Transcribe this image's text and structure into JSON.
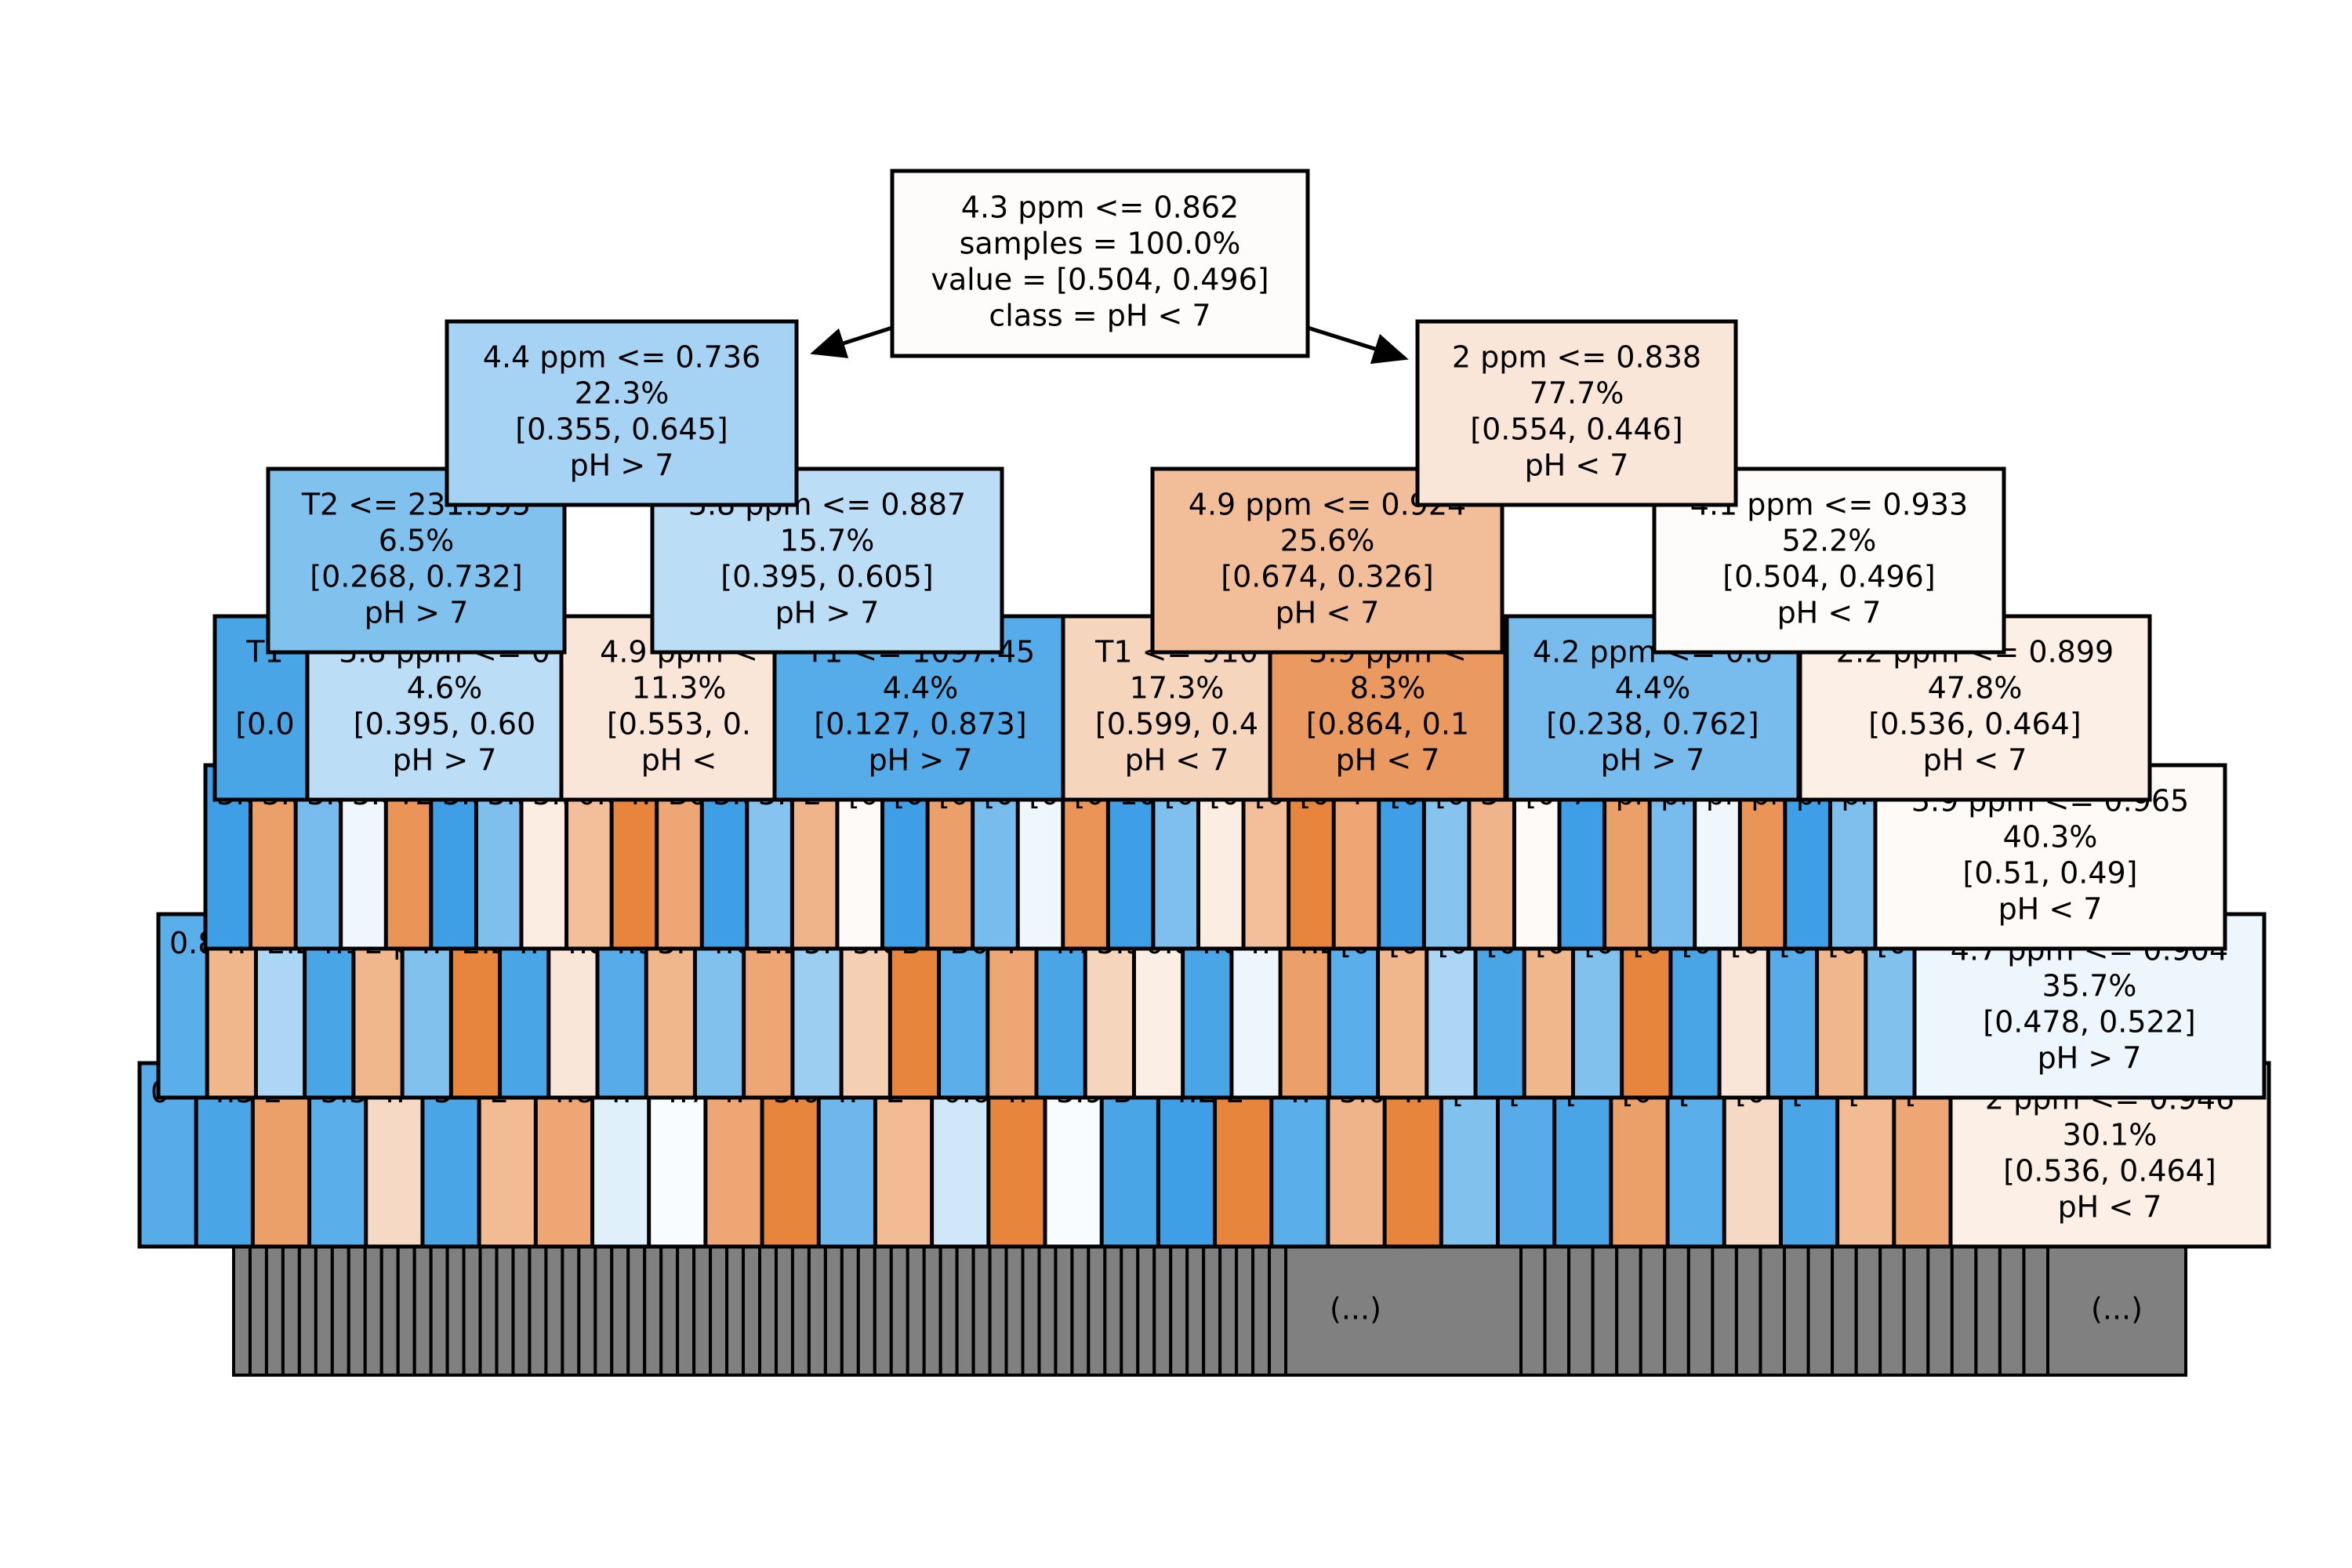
{
  "tree": {
    "root": {
      "lines": [
        "4.3 ppm <= 0.862",
        "samples = 100.0%",
        "value = [0.504, 0.496]",
        "class =  pH < 7"
      ],
      "color": "#fefcfb"
    },
    "nodes": [
      {
        "id": "d1-left",
        "lines": [
          "4.4 ppm <= 0.736",
          "22.3%",
          "[0.355, 0.645]",
          "pH > 7"
        ],
        "color": "#a6d3f3"
      },
      {
        "id": "d1-right",
        "lines": [
          "2 ppm <= 0.838",
          "77.7%",
          "[0.554, 0.446]",
          "pH < 7"
        ],
        "color": "#fae6d8"
      },
      {
        "id": "d2-a",
        "lines": [
          "T2 <= 231.595",
          "6.5%",
          "[0.268, 0.732]",
          "pH > 7"
        ],
        "color": "#81c1ee"
      },
      {
        "id": "d2-b",
        "lines": [
          "3.8 ppm <= 0.887",
          "15.7%",
          "[0.395, 0.605]",
          "pH > 7"
        ],
        "color": "#bbddf6"
      },
      {
        "id": "d2-c",
        "lines": [
          "4.9 ppm <= 0.924",
          "25.6%",
          "[0.674, 0.326]",
          "pH < 7"
        ],
        "color": "#f2be99"
      },
      {
        "id": "d2-d",
        "lines": [
          "4.1 ppm <= 0.933",
          "52.2%",
          "[0.504, 0.496]",
          "pH < 7"
        ],
        "color": "#fefcfb"
      },
      {
        "id": "d3-a",
        "lines": [
          "T1",
          "",
          "[0.0",
          ""
        ],
        "color": "#4aa5e7"
      },
      {
        "id": "d3-b",
        "lines": [
          "3.8 ppm <= 0",
          "4.6%",
          "[0.395, 0.60",
          "pH > 7"
        ],
        "color": "#bbddf6"
      },
      {
        "id": "d3-c",
        "lines": [
          "4.9 ppm <",
          "11.3%",
          "[0.553, 0.",
          "pH <"
        ],
        "color": "#fae6d8"
      },
      {
        "id": "d3-d",
        "lines": [
          "T1 <= 1097.45",
          "4.4%",
          "[0.127, 0.873]",
          "pH > 7"
        ],
        "color": "#56ace9"
      },
      {
        "id": "d3-e",
        "lines": [
          "T1 <= 910",
          "17.3%",
          "[0.599, 0.4",
          "pH < 7"
        ],
        "color": "#f6d5bd"
      },
      {
        "id": "d3-f",
        "lines": [
          "3.9 ppm <",
          "8.3%",
          "[0.864, 0.1",
          "pH < 7"
        ],
        "color": "#ea9a61"
      },
      {
        "id": "d3-g",
        "lines": [
          "4.2 ppm <= 0.8",
          "4.4%",
          "[0.238, 0.762]",
          "pH > 7"
        ],
        "color": "#77bced"
      },
      {
        "id": "d3-h",
        "lines": [
          "2.2 ppm <= 0.899",
          "47.8%",
          "[0.536, 0.464]",
          "pH < 7"
        ],
        "color": "#fcefe6"
      },
      {
        "id": "d4-last",
        "lines": [
          "3.9 ppm <= 0.965",
          "40.3%",
          "[0.51, 0.49]",
          "pH < 7"
        ],
        "color": "#fefaf7"
      },
      {
        "id": "d5-last",
        "lines": [
          "4.7 ppm <= 0.904",
          "35.7%",
          "[0.478, 0.522]",
          "pH > 7"
        ],
        "color": "#eef6fd"
      },
      {
        "id": "d6-last",
        "lines": [
          "2 ppm <= 0.946",
          "30.1%",
          "[0.536, 0.464]",
          "pH < 7"
        ],
        "color": "#fcefe6"
      }
    ],
    "row4_fragments": [
      "3.8 p",
      "3.8 ppm",
      "3.8 pp",
      "3.8",
      "T2 <",
      "3.8 ppm",
      "3.9 ppm",
      "3.9 p",
      "0.8 p",
      "4.4 ppm",
      "B0 <",
      "3.9 ppm",
      "3.0 ppm",
      "2",
      "[0.",
      "[0.243",
      "[0.4",
      "[0.",
      "[0.0",
      "[0.237",
      "10",
      "[0.543",
      "[0.",
      "[0.",
      "[0.787",
      "4",
      "[0.08",
      "[0.282",
      "3",
      "[0.697",
      "7",
      "pl",
      "pl",
      "pl",
      "pl",
      "pl",
      "pl"
    ],
    "row5_fragments": [
      "0.8 p",
      "4.",
      "2.2",
      "4.1 p",
      "2 p",
      "4.",
      "2.2",
      "4.4",
      "4.8",
      "4.9",
      "3.",
      "4.6",
      "2.2",
      "5.",
      "3.6",
      "B",
      "B0",
      "4",
      "4.7",
      "3.9",
      "0.8",
      "4.8 p",
      "4.",
      "4.2",
      "[0",
      "[0",
      "[0",
      "[0",
      "[0",
      "[0",
      "[0",
      "[0",
      "[0",
      "[0",
      "[0.4",
      "[0"
    ],
    "row6_fragments": [
      "0",
      "4.3",
      "2",
      "3.3",
      "4.",
      "3",
      "2",
      "4.8",
      "4.",
      "4.7",
      "4.",
      "3.0",
      "4.",
      "2",
      "0.6",
      "4.",
      "3.9",
      "B",
      "4.2",
      "2",
      "4.",
      "3.0",
      "4.",
      "[",
      "[",
      "[",
      "[0",
      "[",
      "[0",
      "[",
      "[",
      "["
    ],
    "ellipsis": [
      "(...)",
      "(...)"
    ],
    "leaf_color": "#808080"
  }
}
